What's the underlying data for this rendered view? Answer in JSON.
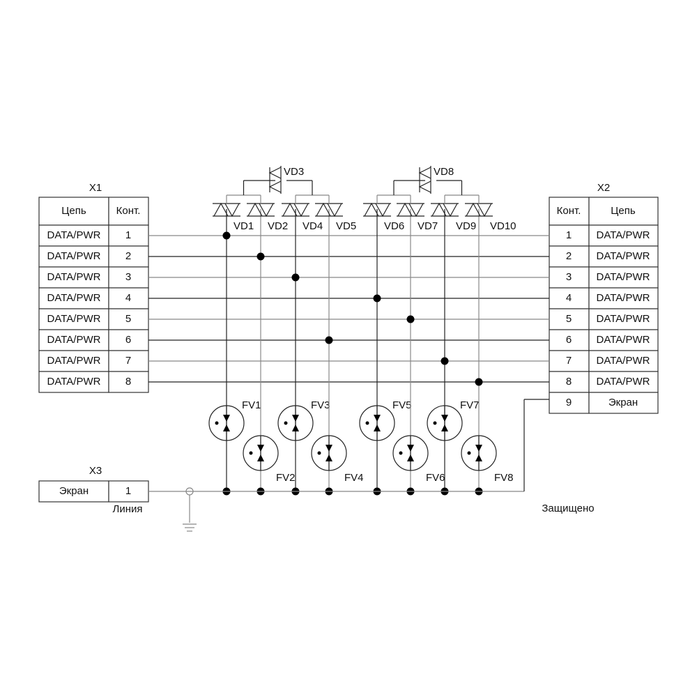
{
  "x1": {
    "title": "X1",
    "header": [
      "Цепь",
      "Конт."
    ],
    "rows": [
      [
        "DATA/PWR",
        "1"
      ],
      [
        "DATA/PWR",
        "2"
      ],
      [
        "DATA/PWR",
        "3"
      ],
      [
        "DATA/PWR",
        "4"
      ],
      [
        "DATA/PWR",
        "5"
      ],
      [
        "DATA/PWR",
        "6"
      ],
      [
        "DATA/PWR",
        "7"
      ],
      [
        "DATA/PWR",
        "8"
      ]
    ]
  },
  "x2": {
    "title": "X2",
    "header": [
      "Конт.",
      "Цепь"
    ],
    "rows": [
      [
        "1",
        "DATA/PWR"
      ],
      [
        "2",
        "DATA/PWR"
      ],
      [
        "3",
        "DATA/PWR"
      ],
      [
        "4",
        "DATA/PWR"
      ],
      [
        "5",
        "DATA/PWR"
      ],
      [
        "6",
        "DATA/PWR"
      ],
      [
        "7",
        "DATA/PWR"
      ],
      [
        "8",
        "DATA/PWR"
      ],
      [
        "9",
        "Экран"
      ]
    ]
  },
  "x3": {
    "title": "X3",
    "row": [
      "Экран",
      "1"
    ],
    "side_label": "Линия"
  },
  "protected_label": "Защищено",
  "diodes": [
    "VD1",
    "VD2",
    "VD3",
    "VD4",
    "VD5",
    "VD6",
    "VD7",
    "VD8",
    "VD9",
    "VD10"
  ],
  "arresters": [
    "FV1",
    "FV2",
    "FV3",
    "FV4",
    "FV5",
    "FV6",
    "FV7",
    "FV8"
  ]
}
